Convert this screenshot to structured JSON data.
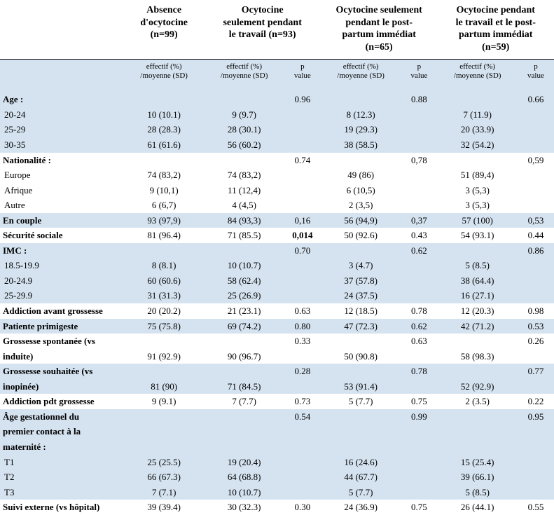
{
  "columns": {
    "groups": [
      {
        "title_l1": "Absence",
        "title_l2": "d'ocytocine",
        "title_l3": "(n=99)",
        "has_p": false
      },
      {
        "title_l1": "Ocytocine",
        "title_l2": "seulement pendant",
        "title_l3": "le travail (n=93)",
        "has_p": true
      },
      {
        "title_l1": "Ocytocine seulement",
        "title_l2": "pendant le post-",
        "title_l3": "partum immédiat",
        "title_l4": "(n=65)",
        "has_p": true
      },
      {
        "title_l1": "Ocytocine pendant",
        "title_l2": "le travail et le post-",
        "title_l3": "partum immédiat",
        "title_l4": "(n=59)",
        "has_p": true
      }
    ],
    "sub_value_l1": "effectif (%)",
    "sub_value_l2": "/moyenne (SD)",
    "sub_p_l1": "p",
    "sub_p_l2": "value"
  },
  "rows": [
    {
      "band": "A",
      "type": "head",
      "label": "Age :",
      "v": [
        "",
        "",
        "",
        ""
      ],
      "p": [
        "0.96",
        "0.88",
        "0.66"
      ]
    },
    {
      "band": "A",
      "type": "sub",
      "label": "20-24",
      "v": [
        "10 (10.1)",
        "9 (9.7)",
        "8 (12.3)",
        "7 (11.9)"
      ],
      "p": [
        "",
        "",
        ""
      ]
    },
    {
      "band": "A",
      "type": "sub",
      "label": "25-29",
      "v": [
        "28 (28.3)",
        "28 (30.1)",
        "19 (29.3)",
        "20 (33.9)"
      ],
      "p": [
        "",
        "",
        ""
      ]
    },
    {
      "band": "A",
      "type": "sub",
      "label": "30-35",
      "v": [
        "61 (61.6)",
        "56 (60.2)",
        "38 (58.5)",
        "32 (54.2)"
      ],
      "p": [
        "",
        "",
        ""
      ]
    },
    {
      "band": "B",
      "type": "head",
      "label": "Nationalité :",
      "v": [
        "",
        "",
        "",
        ""
      ],
      "p": [
        "0.74",
        "0,78",
        "0,59"
      ]
    },
    {
      "band": "B",
      "type": "sub",
      "label": "Europe",
      "v": [
        "74 (83,2)",
        "74 (83,2)",
        "49 (86)",
        "51 (89,4)"
      ],
      "p": [
        "",
        "",
        ""
      ]
    },
    {
      "band": "B",
      "type": "sub",
      "label": "Afrique",
      "v": [
        "9 (10,1)",
        "11 (12,4)",
        "6 (10,5)",
        "3 (5,3)"
      ],
      "p": [
        "",
        "",
        ""
      ]
    },
    {
      "band": "B",
      "type": "sub",
      "label": "Autre",
      "v": [
        "6 (6,7)",
        "4 (4,5)",
        "2 (3,5)",
        "3 (5,3)"
      ],
      "p": [
        "",
        "",
        ""
      ]
    },
    {
      "band": "A",
      "type": "head",
      "label": "En couple",
      "v": [
        "93 (97,9)",
        "84 (93,3)",
        "56 (94,9)",
        "57 (100)"
      ],
      "p": [
        "0,16",
        "0,37",
        "0,53"
      ]
    },
    {
      "band": "B",
      "type": "head",
      "label": "Sécurité sociale",
      "v": [
        "81 (96.4)",
        "71 (85.5)",
        "50 (92.6)",
        "54 (93.1)"
      ],
      "p": [
        "0,014",
        "0.43",
        "0.44"
      ],
      "p_bold": [
        true,
        false,
        false
      ]
    },
    {
      "band": "A",
      "type": "head",
      "label": "IMC :",
      "v": [
        "",
        "",
        "",
        ""
      ],
      "p": [
        "0.70",
        "0.62",
        "0.86"
      ]
    },
    {
      "band": "A",
      "type": "sub",
      "label": "18.5-19.9",
      "v": [
        "8 (8.1)",
        "10 (10.7)",
        "3 (4.7)",
        "5 (8.5)"
      ],
      "p": [
        "",
        "",
        ""
      ]
    },
    {
      "band": "A",
      "type": "sub",
      "label": "20-24.9",
      "v": [
        "60 (60.6)",
        "58 (62.4)",
        "37 (57.8)",
        "38 (64.4)"
      ],
      "p": [
        "",
        "",
        ""
      ]
    },
    {
      "band": "A",
      "type": "sub",
      "label": "25-29.9",
      "v": [
        "31 (31.3)",
        "25 (26.9)",
        "24 (37.5)",
        "16 (27.1)"
      ],
      "p": [
        "",
        "",
        ""
      ]
    },
    {
      "band": "B",
      "type": "head",
      "label": "Addiction avant grossesse",
      "v": [
        "20 (20.2)",
        "21 (23.1)",
        "12 (18.5)",
        "12 (20.3)"
      ],
      "p": [
        "0.63",
        "0.78",
        "0.98"
      ]
    },
    {
      "band": "A",
      "type": "head",
      "label": "Patiente primigeste",
      "v": [
        "75 (75.8)",
        "69 (74.2)",
        "47 (72.3)",
        "42 (71.2)"
      ],
      "p": [
        "0.80",
        "0.62",
        "0.53"
      ]
    },
    {
      "band": "B",
      "type": "head",
      "label": "Grossesse spontanée (vs",
      "v": [
        "",
        "",
        "",
        ""
      ],
      "p": [
        "0.33",
        "0.63",
        "0.26"
      ]
    },
    {
      "band": "B",
      "type": "head",
      "label": "induite)",
      "v": [
        "91 (92.9)",
        "90 (96.7)",
        "50 (90.8)",
        "58 (98.3)"
      ],
      "p": [
        "",
        "",
        ""
      ]
    },
    {
      "band": "A",
      "type": "head",
      "label": "Grossesse souhaitée (vs",
      "v": [
        "",
        "",
        "",
        ""
      ],
      "p": [
        "0.28",
        "0.78",
        "0.77"
      ]
    },
    {
      "band": "A",
      "type": "head",
      "label": "inopinée)",
      "v": [
        "81 (90)",
        "71 (84.5)",
        "53 (91.4)",
        "52 (92.9)"
      ],
      "p": [
        "",
        "",
        ""
      ]
    },
    {
      "band": "B",
      "type": "head",
      "label": "Addiction pdt grossesse",
      "v": [
        "9 (9.1)",
        "7 (7.7)",
        "5 (7.7)",
        "2 (3.5)"
      ],
      "p": [
        "0.73",
        "0.75",
        "0.22"
      ]
    },
    {
      "band": "A",
      "type": "head",
      "label": "Âge gestationnel du",
      "v": [
        "",
        "",
        "",
        ""
      ],
      "p": [
        "0.54",
        "0.99",
        "0.95"
      ]
    },
    {
      "band": "A",
      "type": "head",
      "label": "premier contact à la",
      "v": [
        "",
        "",
        "",
        ""
      ],
      "p": [
        "",
        "",
        ""
      ]
    },
    {
      "band": "A",
      "type": "head",
      "label": "maternité :",
      "v": [
        "",
        "",
        "",
        ""
      ],
      "p": [
        "",
        "",
        ""
      ]
    },
    {
      "band": "A",
      "type": "sub",
      "label": "T1",
      "v": [
        "25 (25.5)",
        "19 (20.4)",
        "16 (24.6)",
        "15 (25.4)"
      ],
      "p": [
        "",
        "",
        ""
      ]
    },
    {
      "band": "A",
      "type": "sub",
      "label": "T2",
      "v": [
        "66 (67.3)",
        "64 (68.8)",
        "44 (67.7)",
        "39 (66.1)"
      ],
      "p": [
        "",
        "",
        ""
      ]
    },
    {
      "band": "A",
      "type": "sub",
      "label": "T3",
      "v": [
        "7 (7.1)",
        "10 (10.7)",
        "5 (7.7)",
        "5 (8.5)"
      ],
      "p": [
        "",
        "",
        ""
      ]
    },
    {
      "band": "B",
      "type": "head",
      "label": "Suivi externe (vs hôpital)",
      "v": [
        "39 (39.4)",
        "30 (32.3)",
        "24 (36.9)",
        "26 (44.1)"
      ],
      "p": [
        "0.30",
        "0.75",
        "0.55"
      ]
    }
  ]
}
